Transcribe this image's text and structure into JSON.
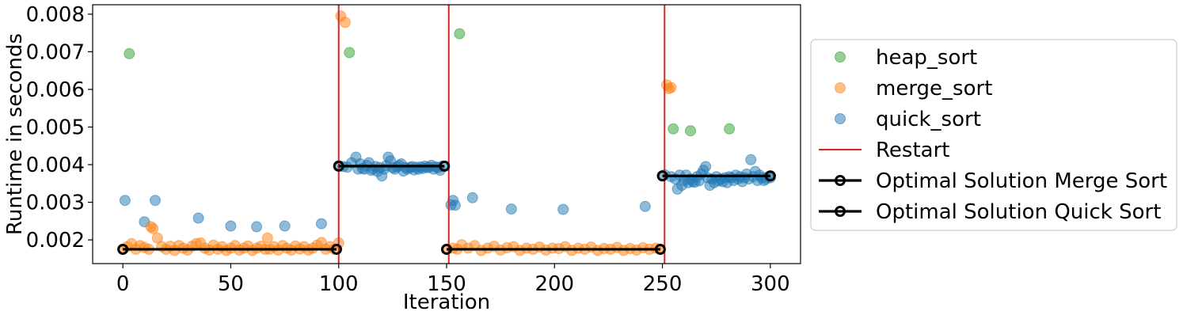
{
  "chart_data": {
    "type": "scatter",
    "title": "",
    "xlabel": "Iteration",
    "ylabel": "Runtime in seconds",
    "xlim": [
      -14,
      314
    ],
    "ylim": [
      0.00137,
      0.00825
    ],
    "xticks": [
      0,
      50,
      100,
      150,
      200,
      250,
      300
    ],
    "xtick_labels": [
      "0",
      "50",
      "100",
      "150",
      "200",
      "250",
      "300"
    ],
    "yticks": [
      0.002,
      0.003,
      0.004,
      0.005,
      0.006,
      0.007,
      0.008
    ],
    "ytick_labels": [
      "0.002",
      "0.003",
      "0.004",
      "0.005",
      "0.006",
      "0.007",
      "0.008"
    ],
    "grid": false,
    "legend_position": "outside-right",
    "colors": {
      "heap_sort": "#2ca02c",
      "merge_sort": "#ff7f0e",
      "quick_sort": "#1f77b4",
      "restart": "#d62728",
      "optimal": "#000000"
    },
    "legend": [
      {
        "label": "heap_sort",
        "kind": "marker",
        "color": "#2ca02c"
      },
      {
        "label": "merge_sort",
        "kind": "marker",
        "color": "#ff7f0e"
      },
      {
        "label": "quick_sort",
        "kind": "marker",
        "color": "#1f77b4"
      },
      {
        "label": "Restart",
        "kind": "line",
        "color": "#d62728"
      },
      {
        "label": "Optimal Solution Merge Sort",
        "kind": "line-marker",
        "color": "#000000"
      },
      {
        "label": "Optimal Solution Quick Sort",
        "kind": "line-marker",
        "color": "#000000"
      }
    ],
    "restarts": [
      100,
      151,
      251
    ],
    "optimal_segments": [
      {
        "name": "Optimal Solution Merge Sort",
        "x": [
          0,
          99
        ],
        "y": [
          0.00175,
          0.00175
        ]
      },
      {
        "name": "Optimal Solution Quick Sort",
        "x": [
          100,
          149
        ],
        "y": [
          0.00396,
          0.00396
        ]
      },
      {
        "name": "Optimal Solution Merge Sort",
        "x": [
          150,
          249
        ],
        "y": [
          0.00175,
          0.00175
        ]
      },
      {
        "name": "Optimal Solution Quick Sort",
        "x": [
          250,
          300
        ],
        "y": [
          0.0037,
          0.0037
        ]
      }
    ],
    "series": [
      {
        "name": "heap_sort",
        "points": [
          [
            3,
            0.00695
          ],
          [
            105,
            0.00698
          ],
          [
            156,
            0.00748
          ],
          [
            255,
            0.00495
          ],
          [
            263,
            0.0049
          ],
          [
            281,
            0.00495
          ]
        ]
      },
      {
        "name": "merge_sort",
        "points": [
          [
            0,
            0.00175
          ],
          [
            2,
            0.00182
          ],
          [
            4,
            0.0019
          ],
          [
            6,
            0.00175
          ],
          [
            8,
            0.00185
          ],
          [
            10,
            0.0018
          ],
          [
            12,
            0.00175
          ],
          [
            13,
            0.00235
          ],
          [
            14,
            0.0023
          ],
          [
            16,
            0.00205
          ],
          [
            18,
            0.00182
          ],
          [
            20,
            0.00175
          ],
          [
            22,
            0.00183
          ],
          [
            24,
            0.00172
          ],
          [
            26,
            0.00185
          ],
          [
            28,
            0.00178
          ],
          [
            30,
            0.00173
          ],
          [
            32,
            0.00183
          ],
          [
            34,
            0.0019
          ],
          [
            36,
            0.00192
          ],
          [
            38,
            0.00178
          ],
          [
            40,
            0.00173
          ],
          [
            42,
            0.00186
          ],
          [
            44,
            0.00175
          ],
          [
            46,
            0.00182
          ],
          [
            48,
            0.00172
          ],
          [
            50,
            0.00178
          ],
          [
            52,
            0.00185
          ],
          [
            54,
            0.00173
          ],
          [
            56,
            0.00178
          ],
          [
            58,
            0.00184
          ],
          [
            60,
            0.00172
          ],
          [
            62,
            0.00178
          ],
          [
            64,
            0.00183
          ],
          [
            66,
            0.00175
          ],
          [
            67,
            0.00205
          ],
          [
            68,
            0.00175
          ],
          [
            70,
            0.00182
          ],
          [
            72,
            0.00173
          ],
          [
            74,
            0.00185
          ],
          [
            76,
            0.00178
          ],
          [
            78,
            0.00173
          ],
          [
            80,
            0.00184
          ],
          [
            82,
            0.00176
          ],
          [
            84,
            0.00182
          ],
          [
            86,
            0.00173
          ],
          [
            88,
            0.00178
          ],
          [
            90,
            0.00186
          ],
          [
            92,
            0.00193
          ],
          [
            94,
            0.00175
          ],
          [
            96,
            0.00182
          ],
          [
            98,
            0.00175
          ],
          [
            100,
            0.00192
          ],
          [
            101,
            0.00795
          ],
          [
            103,
            0.00778
          ],
          [
            150,
            0.00175
          ],
          [
            153,
            0.00178
          ],
          [
            155,
            0.00175
          ],
          [
            157,
            0.00187
          ],
          [
            160,
            0.00178
          ],
          [
            163,
            0.00185
          ],
          [
            166,
            0.00172
          ],
          [
            169,
            0.00178
          ],
          [
            172,
            0.00183
          ],
          [
            175,
            0.00173
          ],
          [
            178,
            0.00179
          ],
          [
            181,
            0.00182
          ],
          [
            184,
            0.00172
          ],
          [
            187,
            0.00178
          ],
          [
            190,
            0.00175
          ],
          [
            193,
            0.00181
          ],
          [
            196,
            0.00173
          ],
          [
            199,
            0.00178
          ],
          [
            202,
            0.00177
          ],
          [
            205,
            0.00182
          ],
          [
            208,
            0.00172
          ],
          [
            211,
            0.00178
          ],
          [
            214,
            0.00175
          ],
          [
            217,
            0.00181
          ],
          [
            220,
            0.00172
          ],
          [
            223,
            0.00177
          ],
          [
            226,
            0.00175
          ],
          [
            229,
            0.0018
          ],
          [
            232,
            0.00172
          ],
          [
            235,
            0.00177
          ],
          [
            238,
            0.00173
          ],
          [
            241,
            0.00179
          ],
          [
            244,
            0.00175
          ],
          [
            247,
            0.00178
          ],
          [
            249,
            0.00175
          ],
          [
            252,
            0.00612
          ],
          [
            253,
            0.00602
          ],
          [
            254,
            0.00605
          ]
        ]
      },
      {
        "name": "quick_sort",
        "points": [
          [
            1,
            0.00305
          ],
          [
            10,
            0.00248
          ],
          [
            15,
            0.00305
          ],
          [
            35,
            0.00258
          ],
          [
            50,
            0.00237
          ],
          [
            62,
            0.00235
          ],
          [
            75,
            0.00237
          ],
          [
            92,
            0.00243
          ],
          [
            100,
            0.00397
          ],
          [
            102,
            0.00395
          ],
          [
            104,
            0.00393
          ],
          [
            106,
            0.00405
          ],
          [
            108,
            0.0042
          ],
          [
            109,
            0.00388
          ],
          [
            110,
            0.00402
          ],
          [
            111,
            0.0039
          ],
          [
            112,
            0.00388
          ],
          [
            113,
            0.00398
          ],
          [
            114,
            0.00405
          ],
          [
            115,
            0.00385
          ],
          [
            116,
            0.00388
          ],
          [
            117,
            0.00395
          ],
          [
            118,
            0.00382
          ],
          [
            119,
            0.00392
          ],
          [
            120,
            0.0037
          ],
          [
            121,
            0.00388
          ],
          [
            122,
            0.00397
          ],
          [
            123,
            0.0042
          ],
          [
            124,
            0.0041
          ],
          [
            125,
            0.00392
          ],
          [
            126,
            0.00388
          ],
          [
            127,
            0.00394
          ],
          [
            128,
            0.00398
          ],
          [
            129,
            0.00402
          ],
          [
            130,
            0.00383
          ],
          [
            131,
            0.00392
          ],
          [
            132,
            0.00388
          ],
          [
            133,
            0.00392
          ],
          [
            134,
            0.00395
          ],
          [
            135,
            0.00386
          ],
          [
            136,
            0.00393
          ],
          [
            137,
            0.00388
          ],
          [
            138,
            0.00394
          ],
          [
            139,
            0.0039
          ],
          [
            140,
            0.00396
          ],
          [
            141,
            0.00392
          ],
          [
            142,
            0.00393
          ],
          [
            143,
            0.00398
          ],
          [
            144,
            0.00388
          ],
          [
            145,
            0.00394
          ],
          [
            146,
            0.00392
          ],
          [
            147,
            0.00385
          ],
          [
            148,
            0.00396
          ],
          [
            152,
            0.00293
          ],
          [
            153,
            0.00305
          ],
          [
            154,
            0.00292
          ],
          [
            162,
            0.00312
          ],
          [
            180,
            0.00282
          ],
          [
            204,
            0.00281
          ],
          [
            242,
            0.00289
          ],
          [
            251,
            0.00373
          ],
          [
            254,
            0.00368
          ],
          [
            256,
            0.00362
          ],
          [
            257,
            0.00335
          ],
          [
            258,
            0.00372
          ],
          [
            259,
            0.00345
          ],
          [
            260,
            0.00358
          ],
          [
            261,
            0.00372
          ],
          [
            262,
            0.00352
          ],
          [
            263,
            0.00362
          ],
          [
            264,
            0.00355
          ],
          [
            265,
            0.00353
          ],
          [
            266,
            0.00368
          ],
          [
            267,
            0.00357
          ],
          [
            268,
            0.00375
          ],
          [
            269,
            0.00385
          ],
          [
            270,
            0.00395
          ],
          [
            271,
            0.00365
          ],
          [
            272,
            0.00345
          ],
          [
            273,
            0.00362
          ],
          [
            274,
            0.00352
          ],
          [
            275,
            0.00368
          ],
          [
            276,
            0.00357
          ],
          [
            277,
            0.00362
          ],
          [
            278,
            0.00355
          ],
          [
            279,
            0.00365
          ],
          [
            280,
            0.00352
          ],
          [
            281,
            0.00368
          ],
          [
            282,
            0.00365
          ],
          [
            283,
            0.00358
          ],
          [
            284,
            0.00372
          ],
          [
            285,
            0.00362
          ],
          [
            286,
            0.00368
          ],
          [
            287,
            0.00355
          ],
          [
            288,
            0.00365
          ],
          [
            289,
            0.00375
          ],
          [
            290,
            0.00362
          ],
          [
            291,
            0.00413
          ],
          [
            292,
            0.00368
          ],
          [
            293,
            0.00382
          ],
          [
            294,
            0.00358
          ],
          [
            295,
            0.00372
          ],
          [
            296,
            0.00365
          ],
          [
            297,
            0.00358
          ],
          [
            298,
            0.00362
          ],
          [
            299,
            0.00368
          ],
          [
            300,
            0.00365
          ]
        ]
      }
    ]
  }
}
